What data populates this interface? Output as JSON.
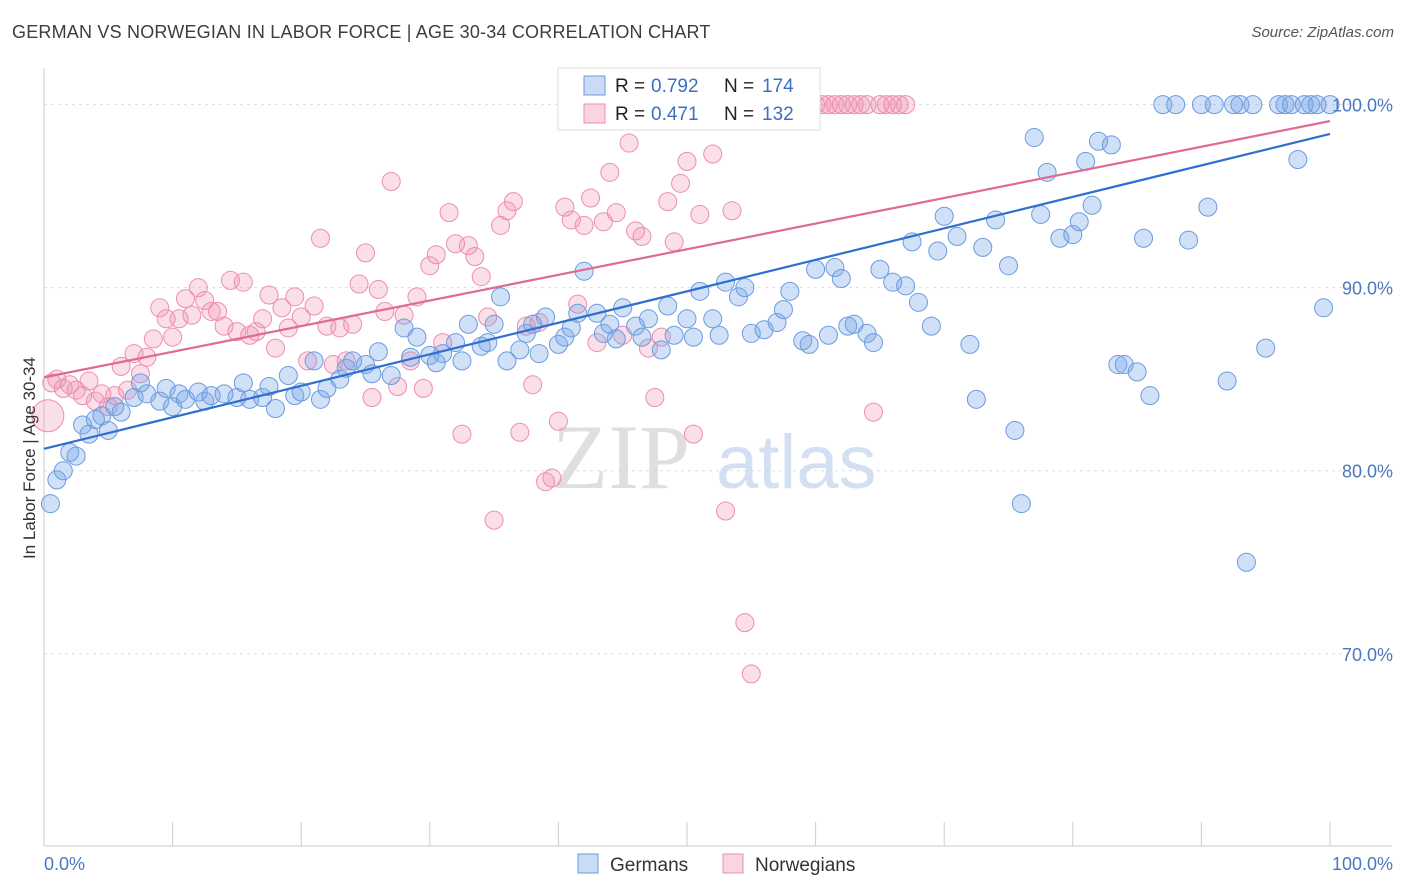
{
  "title": "GERMAN VS NORWEGIAN IN LABOR FORCE | AGE 30-34 CORRELATION CHART",
  "source": "Source: ZipAtlas.com",
  "colors": {
    "germans_fill": "rgba(120,165,230,0.35)",
    "germans_stroke": "#6b9be0",
    "germans_line": "#2f6fd0",
    "norwegians_fill": "rgba(240,150,180,0.30)",
    "norwegians_stroke": "#ee8db0",
    "norwegians_line": "#e06a95",
    "tick_color": "#4a78c0",
    "grid": "#dddddd"
  },
  "legend": {
    "r_label": "R =",
    "n_label": "N =",
    "germans": {
      "r": "0.792",
      "n": "174"
    },
    "norwegians": {
      "r": "0.471",
      "n": "132"
    }
  },
  "watermark": {
    "zip": "ZIP",
    "atlas": "atlas"
  },
  "chart_data": {
    "type": "scatter",
    "ylabel": "In Labor Force | Age 30-34",
    "xlabel": "",
    "x_tick_labels": [
      "0.0%",
      "100.0%"
    ],
    "y_tick_labels": [
      "100.0%",
      "90.0%",
      "80.0%",
      "70.0%"
    ],
    "y_ticks": [
      100,
      90,
      80,
      70
    ],
    "xlim": [
      0,
      100
    ],
    "ylim": [
      59.5,
      102
    ],
    "grid": true,
    "legend_position": "top-center",
    "series": [
      {
        "name": "Germans",
        "r": 0.792,
        "n": 174,
        "trend": [
          [
            0,
            81.2
          ],
          [
            100,
            98.4
          ]
        ],
        "points": [
          [
            0.5,
            78.2
          ],
          [
            1,
            79.5
          ],
          [
            1.5,
            80
          ],
          [
            2,
            81
          ],
          [
            2.5,
            80.8
          ],
          [
            3,
            82.5
          ],
          [
            3.5,
            82
          ],
          [
            4,
            82.8
          ],
          [
            4.5,
            83
          ],
          [
            5,
            82.2
          ],
          [
            5.5,
            83.5
          ],
          [
            6,
            83.2
          ],
          [
            7,
            84
          ],
          [
            7.5,
            84.8
          ],
          [
            8,
            84.2
          ],
          [
            9,
            83.8
          ],
          [
            9.5,
            84.5
          ],
          [
            10,
            83.5
          ],
          [
            10.5,
            84.2
          ],
          [
            11,
            83.9
          ],
          [
            12,
            84.3
          ],
          [
            12.5,
            83.8
          ],
          [
            13,
            84.1
          ],
          [
            14,
            84.2
          ],
          [
            15,
            84
          ],
          [
            15.5,
            84.8
          ],
          [
            16,
            83.9
          ],
          [
            17,
            84
          ],
          [
            17.5,
            84.6
          ],
          [
            18,
            83.4
          ],
          [
            19,
            85.2
          ],
          [
            19.5,
            84.1
          ],
          [
            20,
            84.3
          ],
          [
            21,
            86
          ],
          [
            21.5,
            83.9
          ],
          [
            22,
            84.5
          ],
          [
            23,
            85
          ],
          [
            23.5,
            85.6
          ],
          [
            24,
            86
          ],
          [
            25,
            85.8
          ],
          [
            25.5,
            85.3
          ],
          [
            26,
            86.5
          ],
          [
            27,
            85.2
          ],
          [
            28,
            87.8
          ],
          [
            28.5,
            86.2
          ],
          [
            29,
            87.3
          ],
          [
            30,
            86.3
          ],
          [
            30.5,
            85.9
          ],
          [
            31,
            86.4
          ],
          [
            32,
            87
          ],
          [
            32.5,
            86
          ],
          [
            33,
            88
          ],
          [
            34,
            86.8
          ],
          [
            34.5,
            87
          ],
          [
            35,
            88
          ],
          [
            35.5,
            89.5
          ],
          [
            36,
            86
          ],
          [
            37,
            86.6
          ],
          [
            37.5,
            87.5
          ],
          [
            38,
            88
          ],
          [
            38.5,
            86.4
          ],
          [
            39,
            88.4
          ],
          [
            40,
            86.9
          ],
          [
            40.5,
            87.3
          ],
          [
            41,
            87.8
          ],
          [
            41.5,
            88.6
          ],
          [
            42,
            90.9
          ],
          [
            43,
            88.6
          ],
          [
            43.5,
            87.5
          ],
          [
            44,
            88
          ],
          [
            44.5,
            87.2
          ],
          [
            45,
            88.9
          ],
          [
            46,
            87.9
          ],
          [
            46.5,
            87.3
          ],
          [
            47,
            88.3
          ],
          [
            48,
            86.6
          ],
          [
            48.5,
            89
          ],
          [
            49,
            87.4
          ],
          [
            50,
            88.3
          ],
          [
            50.5,
            87.3
          ],
          [
            51,
            89.8
          ],
          [
            52,
            88.3
          ],
          [
            52.5,
            87.4
          ],
          [
            53,
            90.3
          ],
          [
            54,
            89.5
          ],
          [
            54.5,
            90
          ],
          [
            55,
            87.5
          ],
          [
            56,
            87.7
          ],
          [
            57,
            88.1
          ],
          [
            57.5,
            88.8
          ],
          [
            58,
            89.8
          ],
          [
            59,
            87.1
          ],
          [
            59.5,
            86.9
          ],
          [
            60,
            91
          ],
          [
            61,
            87.4
          ],
          [
            61.5,
            91.1
          ],
          [
            62,
            90.5
          ],
          [
            62.5,
            87.9
          ],
          [
            63,
            88
          ],
          [
            64,
            87.5
          ],
          [
            64.5,
            87
          ],
          [
            65,
            91
          ],
          [
            66,
            90.3
          ],
          [
            67,
            90.1
          ],
          [
            67.5,
            92.5
          ],
          [
            68,
            89.2
          ],
          [
            69,
            87.9
          ],
          [
            69.5,
            92
          ],
          [
            70,
            93.9
          ],
          [
            71,
            92.8
          ],
          [
            72,
            86.9
          ],
          [
            72.5,
            83.9
          ],
          [
            73,
            92.2
          ],
          [
            74,
            93.7
          ],
          [
            75,
            91.2
          ],
          [
            75.5,
            82.2
          ],
          [
            76,
            78.2
          ],
          [
            77,
            98.2
          ],
          [
            77.5,
            94
          ],
          [
            78,
            96.3
          ],
          [
            79,
            92.7
          ],
          [
            80,
            92.9
          ],
          [
            80.5,
            93.6
          ],
          [
            81,
            96.9
          ],
          [
            81.5,
            94.5
          ],
          [
            82,
            98
          ],
          [
            83,
            97.8
          ],
          [
            83.5,
            85.8
          ],
          [
            84,
            85.8
          ],
          [
            85,
            85.4
          ],
          [
            85.5,
            92.7
          ],
          [
            86,
            84.1
          ],
          [
            87,
            100
          ],
          [
            88,
            100
          ],
          [
            89,
            92.6
          ],
          [
            90,
            100
          ],
          [
            90.5,
            94.4
          ],
          [
            91,
            100
          ],
          [
            92,
            84.9
          ],
          [
            92.5,
            100
          ],
          [
            93,
            100
          ],
          [
            93.5,
            75
          ],
          [
            94,
            100
          ],
          [
            95,
            86.7
          ],
          [
            96,
            100
          ],
          [
            96.5,
            100
          ],
          [
            97,
            100
          ],
          [
            97.5,
            97
          ],
          [
            98,
            100
          ],
          [
            98.5,
            100
          ],
          [
            99,
            100
          ],
          [
            99.5,
            88.9
          ],
          [
            100,
            100
          ]
        ]
      },
      {
        "name": "Norwegians",
        "r": 0.471,
        "n": 132,
        "trend": [
          [
            0,
            85.1
          ],
          [
            100,
            99.1
          ]
        ],
        "points": [
          [
            0.3,
            83
          ],
          [
            0.6,
            84.8
          ],
          [
            1,
            85
          ],
          [
            1.5,
            84.5
          ],
          [
            2,
            84.7
          ],
          [
            2.5,
            84.4
          ],
          [
            3,
            84.1
          ],
          [
            3.5,
            84.9
          ],
          [
            4,
            83.8
          ],
          [
            4.5,
            84.2
          ],
          [
            5,
            83.5
          ],
          [
            5.5,
            84.1
          ],
          [
            6,
            85.7
          ],
          [
            6.5,
            84.4
          ],
          [
            7,
            86.4
          ],
          [
            7.5,
            85.3
          ],
          [
            8,
            86.2
          ],
          [
            8.5,
            87.2
          ],
          [
            9,
            88.9
          ],
          [
            9.5,
            88.3
          ],
          [
            10,
            87.3
          ],
          [
            10.5,
            88.3
          ],
          [
            11,
            89.4
          ],
          [
            11.5,
            88.5
          ],
          [
            12,
            90
          ],
          [
            12.5,
            89.3
          ],
          [
            13,
            88.7
          ],
          [
            13.5,
            88.7
          ],
          [
            14,
            87.9
          ],
          [
            14.5,
            90.4
          ],
          [
            15,
            87.6
          ],
          [
            15.5,
            90.3
          ],
          [
            16,
            87.4
          ],
          [
            16.5,
            87.6
          ],
          [
            17,
            88.3
          ],
          [
            17.5,
            89.6
          ],
          [
            18,
            86.7
          ],
          [
            18.5,
            88.9
          ],
          [
            19,
            87.8
          ],
          [
            19.5,
            89.5
          ],
          [
            20,
            88.4
          ],
          [
            20.5,
            86
          ],
          [
            21,
            89
          ],
          [
            21.5,
            92.7
          ],
          [
            22,
            87.9
          ],
          [
            22.5,
            85.8
          ],
          [
            23,
            87.8
          ],
          [
            23.5,
            86
          ],
          [
            24,
            88
          ],
          [
            24.5,
            90.2
          ],
          [
            25,
            91.9
          ],
          [
            25.5,
            84
          ],
          [
            26,
            89.9
          ],
          [
            26.5,
            88.7
          ],
          [
            27,
            95.8
          ],
          [
            27.5,
            84.6
          ],
          [
            28,
            88.5
          ],
          [
            28.5,
            86
          ],
          [
            29,
            89.5
          ],
          [
            29.5,
            84.5
          ],
          [
            30,
            91.2
          ],
          [
            30.5,
            91.8
          ],
          [
            31,
            87
          ],
          [
            31.5,
            94.1
          ],
          [
            32,
            92.4
          ],
          [
            32.5,
            82
          ],
          [
            33,
            92.3
          ],
          [
            33.5,
            91.7
          ],
          [
            34,
            90.6
          ],
          [
            34.5,
            88.4
          ],
          [
            35,
            77.3
          ],
          [
            35.5,
            93.4
          ],
          [
            36,
            94.2
          ],
          [
            36.5,
            94.7
          ],
          [
            37,
            82.1
          ],
          [
            37.5,
            87.9
          ],
          [
            38,
            84.7
          ],
          [
            38.5,
            88.1
          ],
          [
            39,
            79.4
          ],
          [
            39.5,
            79.6
          ],
          [
            40,
            82.7
          ],
          [
            40.5,
            94.4
          ],
          [
            41,
            93.7
          ],
          [
            41.5,
            89.1
          ],
          [
            42,
            93.4
          ],
          [
            42.5,
            94.9
          ],
          [
            43,
            87
          ],
          [
            43.5,
            93.6
          ],
          [
            44,
            96.3
          ],
          [
            44.5,
            94.1
          ],
          [
            45,
            87.4
          ],
          [
            45.5,
            97.9
          ],
          [
            46,
            93.1
          ],
          [
            46.5,
            92.8
          ],
          [
            47,
            86.7
          ],
          [
            47.5,
            84
          ],
          [
            48,
            87.3
          ],
          [
            48.5,
            94.7
          ],
          [
            49,
            92.5
          ],
          [
            49.5,
            95.7
          ],
          [
            50,
            96.9
          ],
          [
            50.5,
            82
          ],
          [
            51,
            94
          ],
          [
            51.5,
            100
          ],
          [
            52,
            97.3
          ],
          [
            52.5,
            100
          ],
          [
            53,
            77.8
          ],
          [
            53.5,
            94.2
          ],
          [
            54,
            100
          ],
          [
            54.5,
            71.7
          ],
          [
            55,
            68.9
          ],
          [
            55.5,
            100
          ],
          [
            56,
            100
          ],
          [
            56.5,
            100
          ],
          [
            57,
            100
          ],
          [
            57.5,
            100
          ],
          [
            58,
            100
          ],
          [
            58.5,
            100
          ],
          [
            59,
            100
          ],
          [
            59.5,
            100
          ],
          [
            60,
            100
          ],
          [
            60.5,
            100
          ],
          [
            61,
            100
          ],
          [
            61.5,
            100
          ],
          [
            62,
            100
          ],
          [
            62.5,
            100
          ],
          [
            63,
            100
          ],
          [
            63.5,
            100
          ],
          [
            64,
            100
          ],
          [
            64.5,
            83.2
          ],
          [
            65,
            100
          ],
          [
            65.5,
            100
          ],
          [
            66,
            100
          ],
          [
            66.5,
            100
          ],
          [
            67,
            100
          ]
        ]
      }
    ]
  }
}
